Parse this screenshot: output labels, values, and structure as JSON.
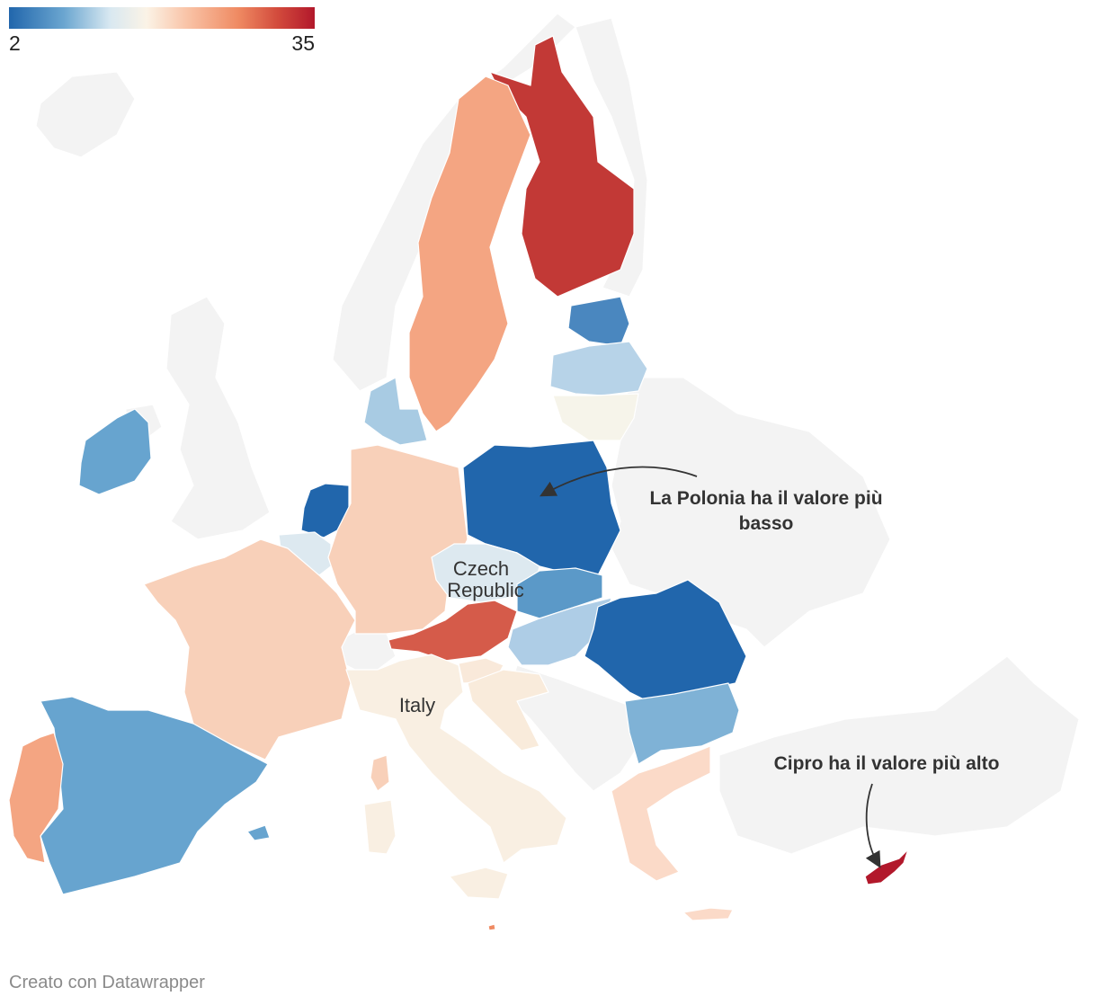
{
  "legend": {
    "min_label": "2",
    "max_label": "35",
    "min": 2,
    "max": 35,
    "scale_colors": [
      "#2166ac",
      "#6ba6d0",
      "#d8e8f1",
      "#fbf3e6",
      "#f9c4a8",
      "#ef8a62",
      "#d24a3c",
      "#b2182b"
    ]
  },
  "map_labels": {
    "czech_line1": "Czech",
    "czech_line2": "Republic",
    "italy": "Italy"
  },
  "annotations": {
    "poland_line1": "La Polonia ha il valore più",
    "poland_line2": "basso",
    "cyprus": "Cipro ha il valore più alto"
  },
  "footer": {
    "credit": "Creato con Datawrapper"
  },
  "colors": {
    "nondata": "#f3f3f3"
  },
  "countries": [
    {
      "name": "Finland",
      "color": "#c23936"
    },
    {
      "name": "Sweden",
      "color": "#f4a582"
    },
    {
      "name": "Estonia",
      "color": "#4a87bf"
    },
    {
      "name": "Latvia",
      "color": "#b7d3e8"
    },
    {
      "name": "Lithuania",
      "color": "#f6f4ea"
    },
    {
      "name": "Denmark",
      "color": "#a8cbe3"
    },
    {
      "name": "Ireland",
      "color": "#67a4cf"
    },
    {
      "name": "Netherlands",
      "color": "#2166ac"
    },
    {
      "name": "Belgium",
      "color": "#dde9f0"
    },
    {
      "name": "Luxembourg",
      "color": "#dde9f0"
    },
    {
      "name": "Germany",
      "color": "#f8d0b9"
    },
    {
      "name": "France",
      "color": "#f8d0b9"
    },
    {
      "name": "Poland",
      "color": "#2166ac"
    },
    {
      "name": "Czech Republic",
      "color": "#dde9f0"
    },
    {
      "name": "Slovakia",
      "color": "#5b99c8"
    },
    {
      "name": "Austria",
      "color": "#d55b4a"
    },
    {
      "name": "Hungary",
      "color": "#aecde6"
    },
    {
      "name": "Slovenia",
      "color": "#f9e9da"
    },
    {
      "name": "Croatia",
      "color": "#f9ebdb"
    },
    {
      "name": "Romania",
      "color": "#2166ac"
    },
    {
      "name": "Bulgaria",
      "color": "#7fb2d6"
    },
    {
      "name": "Greece",
      "color": "#fbdac8"
    },
    {
      "name": "Italy",
      "color": "#f9efe2"
    },
    {
      "name": "Spain",
      "color": "#67a4cf"
    },
    {
      "name": "Portugal",
      "color": "#f4a582"
    },
    {
      "name": "Malta",
      "color": "#ef8a62"
    },
    {
      "name": "Cyprus",
      "color": "#b2182b"
    }
  ]
}
